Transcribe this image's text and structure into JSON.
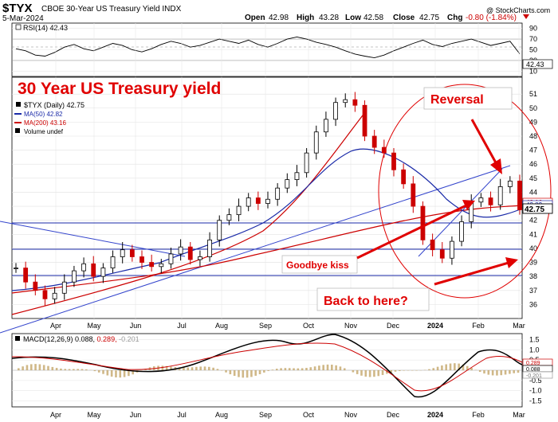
{
  "header": {
    "symbol": "$TYX",
    "description": "CBOE 30-Year US Treasury Yield INDX",
    "date": "5-Mar-2024",
    "open_label": "Open",
    "open": "42.98",
    "high_label": "High",
    "high": "43.28",
    "low_label": "Low",
    "low": "42.58",
    "close_label": "Close",
    "close": "42.75",
    "chg_label": "Chg",
    "chg": "-0.80 (-1.84%)",
    "watermark": "@ StockCharts.com"
  },
  "rsi": {
    "label": "RSI(14) 42.43",
    "value_badge": "42.43",
    "ticks": [
      "90",
      "70",
      "50",
      "30",
      "10"
    ]
  },
  "main": {
    "title": "30 Year US Treasury yield",
    "legend": {
      "series": "$TYX (Daily) 42.75",
      "ma50": "MA(50) 42.82",
      "ma200": "MA(200) 43.16",
      "volume": "Volume undef"
    },
    "price_ticks": [
      "51",
      "50",
      "49",
      "48",
      "47",
      "46",
      "45",
      "44",
      "43",
      "42",
      "41",
      "40",
      "39",
      "38",
      "37",
      "36"
    ],
    "price_badges": [
      "43.16",
      "42.82",
      "42.75"
    ],
    "annotations": {
      "reversal": "Reversal",
      "goodbye": "Goodbye kiss",
      "back": "Back to here?"
    }
  },
  "macd": {
    "label_main": "MACD(12,26,9) 0.088,",
    "label_signal": " 0.289,",
    "label_hist": " -0.201",
    "ticks": [
      "1.5",
      "1.0",
      "0.5",
      "0.0",
      "-0.5",
      "-1.0",
      "-1.5"
    ],
    "badges": [
      "0.289",
      "0.088",
      "-0.201"
    ]
  },
  "months": [
    "Apr",
    "May",
    "Jun",
    "Jul",
    "Aug",
    "Sep",
    "Oct",
    "Nov",
    "Dec",
    "2024",
    "Feb",
    "Mar"
  ],
  "colors": {
    "up": "#000000",
    "down": "#cc0000",
    "ma50": "#1a2aa8",
    "ma200": "#cc0000",
    "annotation_red": "#e00000",
    "trendline_blue": "#3344cc"
  },
  "chart_data": {
    "type": "candlestick",
    "title": "30 Year US Treasury yield",
    "ylim": [
      35,
      52
    ],
    "x_months": [
      "Apr",
      "May",
      "Jun",
      "Jul",
      "Aug",
      "Sep",
      "Oct",
      "Nov",
      "Dec",
      "2024",
      "Feb",
      "Mar"
    ],
    "weekly_close": [
      38.6,
      37.6,
      37.0,
      36.4,
      36.8,
      37.6,
      38.4,
      38.9,
      38.0,
      38.6,
      39.4,
      39.9,
      39.4,
      39.0,
      38.7,
      38.9,
      39.6,
      40.1,
      39.2,
      39.4,
      40.6,
      42.0,
      42.4,
      43.0,
      43.6,
      43.2,
      43.5,
      44.3,
      44.9,
      45.4,
      46.8,
      48.3,
      49.2,
      50.4,
      50.6,
      50.2,
      48.0,
      47.2,
      46.8,
      45.6,
      44.6,
      43.0,
      40.6,
      39.9,
      39.3,
      40.5,
      41.9,
      43.3,
      43.6,
      43.1,
      44.4,
      44.8,
      42.75
    ],
    "ma50_end": 42.82,
    "ma200_end": 43.16,
    "close": 42.75,
    "rsi_last": 42.43,
    "macd": {
      "macd": 0.088,
      "signal": 0.289,
      "histogram": -0.201,
      "ylim": [
        -1.5,
        1.5
      ]
    },
    "horizontal_levels": [
      42,
      39.7,
      38.1
    ]
  }
}
